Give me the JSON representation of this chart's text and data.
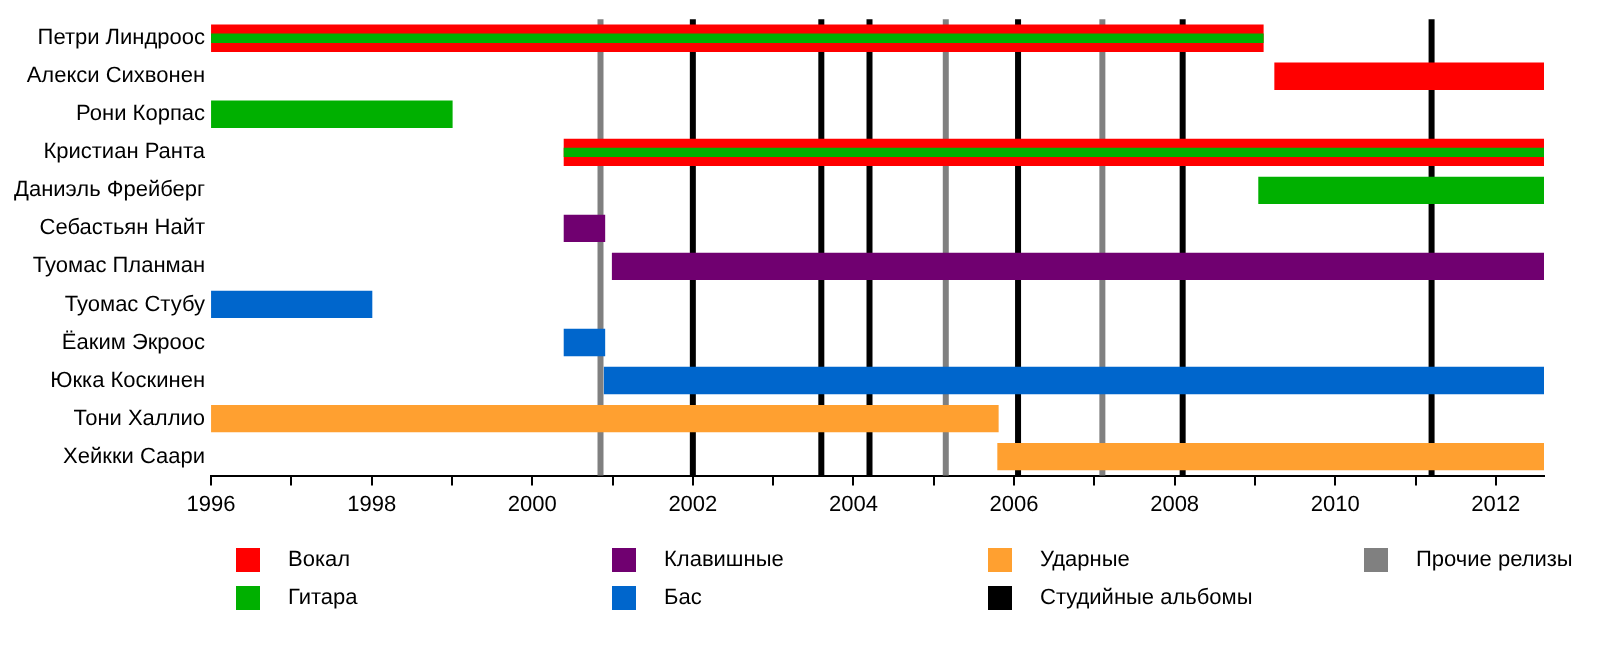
{
  "chart_data": {
    "type": "bar",
    "orientation": "horizontal",
    "legend": "bottom",
    "grid": false,
    "categories": [
      "Петри Линдроос",
      "Алекси Сихвонен",
      "Рони Корпас",
      "Кристиан Ранта",
      "Даниэль Фрейберг",
      "Себастьян Найт",
      "Туомас Планман",
      "Туомас Стубу",
      "Ёаким Экроос",
      "Юкка Коскинен",
      "Тони Халлио",
      "Хейкки Саари"
    ],
    "series": [
      {
        "name": "Вокал",
        "color": "#ff0000",
        "base": [
          1996,
          2009.25,
          null,
          2000.4,
          null,
          null,
          null,
          null,
          null,
          null,
          null,
          null
        ],
        "values": [
          13.1,
          3.35,
          null,
          12.2,
          null,
          null,
          null,
          null,
          null,
          null,
          null,
          null
        ]
      },
      {
        "name": "Гитара",
        "color": "#00b000",
        "base": [
          1996,
          null,
          1996,
          2000.4,
          2009.05,
          null,
          null,
          null,
          null,
          null,
          null,
          null
        ],
        "values": [
          13.1,
          null,
          3,
          12.2,
          3.55,
          null,
          null,
          null,
          null,
          null,
          null,
          null
        ]
      },
      {
        "name": "Клавишные",
        "color": "#700070",
        "base": [
          null,
          null,
          null,
          null,
          null,
          2000.4,
          2001,
          null,
          null,
          null,
          null,
          null
        ],
        "values": [
          null,
          null,
          null,
          null,
          null,
          0.5,
          11.6,
          null,
          null,
          null,
          null,
          null
        ]
      },
      {
        "name": "Бас",
        "color": "#0066cc",
        "base": [
          null,
          null,
          null,
          null,
          null,
          null,
          null,
          1996,
          2000.4,
          2000.9,
          null,
          null
        ],
        "values": [
          null,
          null,
          null,
          null,
          null,
          null,
          null,
          2,
          0.5,
          11.7,
          null,
          null
        ]
      },
      {
        "name": "Ударные",
        "color": "#ffa030",
        "base": [
          null,
          null,
          null,
          null,
          null,
          null,
          null,
          null,
          null,
          null,
          1996,
          2005.8
        ],
        "values": [
          null,
          null,
          null,
          null,
          null,
          null,
          null,
          null,
          null,
          null,
          9.8,
          6.8
        ]
      }
    ],
    "ref_lines": [
      {
        "axis": "x",
        "value": 2002,
        "label": "Студийные альбомы",
        "color": "#000000"
      },
      {
        "axis": "x",
        "value": 2003.6,
        "color": "#000000"
      },
      {
        "axis": "x",
        "value": 2004.2,
        "color": "#000000"
      },
      {
        "axis": "x",
        "value": 2006.05,
        "color": "#000000"
      },
      {
        "axis": "x",
        "value": 2008.1,
        "color": "#000000"
      },
      {
        "axis": "x",
        "value": 2011.2,
        "color": "#000000"
      },
      {
        "axis": "x",
        "value": 2000.85,
        "label": "Прочие релизы",
        "color": "#808080"
      },
      {
        "axis": "x",
        "value": 2005.15,
        "color": "#808080"
      },
      {
        "axis": "x",
        "value": 2007.1,
        "color": "#808080"
      }
    ],
    "xlim": [
      1996,
      2012.6
    ],
    "xticks": [
      1996,
      {
        "value": 1997,
        "label": null
      },
      1998,
      {
        "value": 1999,
        "label": null
      },
      2000,
      {
        "value": 2001,
        "label": null
      },
      2002,
      {
        "value": 2003,
        "label": null
      },
      2004,
      {
        "value": 2005,
        "label": null
      },
      2006,
      {
        "value": 2007,
        "label": null
      },
      2008,
      {
        "value": 2009,
        "label": null
      },
      2010,
      {
        "value": 2011,
        "label": null
      },
      2012
    ]
  }
}
